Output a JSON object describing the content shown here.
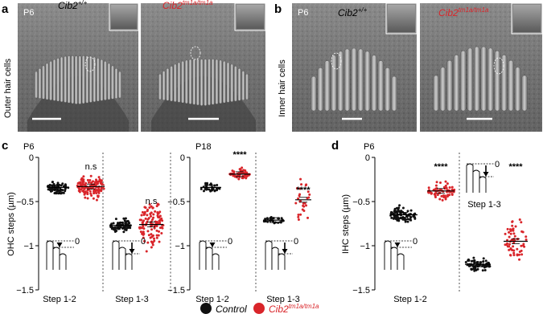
{
  "panels": {
    "a": {
      "letter": "a",
      "row_label": "Outer hair cells",
      "age": "P6",
      "genotype_wt": "Cib2",
      "genotype_wt_sup": "+/+",
      "genotype_mut": "Cib2",
      "genotype_mut_sup": "tm1a/tm1a"
    },
    "b": {
      "letter": "b",
      "row_label": "Inner hair cells",
      "age": "P6",
      "genotype_wt": "Cib2",
      "genotype_wt_sup": "+/+",
      "genotype_mut": "Cib2",
      "genotype_mut_sup": "tm1a/tm1a"
    },
    "c": {
      "letter": "c",
      "age_left": "P6",
      "age_right": "P18"
    },
    "d": {
      "letter": "d",
      "age": "P6"
    }
  },
  "colors": {
    "control": "#111111",
    "mutant": "#d9252a"
  },
  "chart_data": [
    {
      "type": "scatter",
      "panel": "c",
      "ylabel": "OHC steps (µm)",
      "ylim": [
        -1.5,
        0
      ],
      "yticks": [
        "0",
        "-0.5",
        "-1",
        "-1.5"
      ],
      "groups": [
        {
          "age": "P6",
          "step": "Step 1-2",
          "control_mean": -0.34,
          "mutant_mean": -0.33,
          "significance": "n.s"
        },
        {
          "age": "P6",
          "step": "Step 1-3",
          "control_mean": -0.77,
          "mutant_mean": -0.76,
          "significance": "n.s"
        },
        {
          "age": "P18",
          "step": "Step 1-2",
          "control_mean": -0.34,
          "mutant_mean": -0.19,
          "significance": "****"
        },
        {
          "age": "P18",
          "step": "Step 1-3",
          "control_mean": -0.71,
          "mutant_mean": -0.48,
          "significance": "****"
        }
      ]
    },
    {
      "type": "scatter",
      "panel": "d",
      "ylabel": "IHC steps (µm)",
      "ylim": [
        -1.5,
        0
      ],
      "yticks": [
        "0",
        "-0.5",
        "-1",
        "-1.5"
      ],
      "groups": [
        {
          "age": "P6",
          "step": "Step 1-2",
          "control_mean": -0.65,
          "mutant_mean": -0.38,
          "significance": "****"
        },
        {
          "age": "P6",
          "step": "Step 1-3",
          "control_mean": -1.21,
          "mutant_mean": -0.95,
          "significance": "****"
        }
      ]
    }
  ],
  "inset_zero": "0",
  "legend": {
    "control": "Control",
    "mutant": "Cib2",
    "mutant_sup": "tm1a/tm1a"
  }
}
